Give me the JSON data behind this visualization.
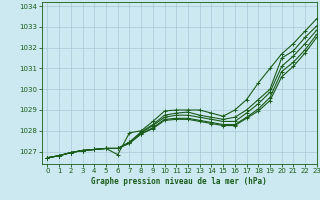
{
  "title": "Graphe pression niveau de la mer (hPa)",
  "bg_color": "#cce8f0",
  "line_color": "#1a5c1a",
  "grid_color": "#aac8d8",
  "xlim": [
    -0.5,
    23
  ],
  "ylim": [
    1026.4,
    1034.2
  ],
  "xticks": [
    0,
    1,
    2,
    3,
    4,
    5,
    6,
    7,
    8,
    9,
    10,
    11,
    12,
    13,
    14,
    15,
    16,
    17,
    18,
    19,
    20,
    21,
    22,
    23
  ],
  "yticks": [
    1027,
    1028,
    1029,
    1030,
    1031,
    1032,
    1033,
    1034
  ],
  "series": [
    [
      1026.7,
      1026.8,
      1026.95,
      1027.05,
      1027.1,
      1027.15,
      1026.85,
      1027.9,
      1028.0,
      1028.45,
      1028.95,
      1029.0,
      1029.0,
      1029.0,
      1028.85,
      1028.7,
      1029.0,
      1029.5,
      1030.3,
      1031.0,
      1031.7,
      1032.2,
      1032.8,
      1033.4
    ],
    [
      1026.7,
      1026.8,
      1026.95,
      1027.05,
      1027.1,
      1027.15,
      1027.15,
      1027.45,
      1027.95,
      1028.3,
      1028.75,
      1028.85,
      1028.9,
      1028.75,
      1028.65,
      1028.55,
      1028.65,
      1029.0,
      1029.5,
      1030.0,
      1031.5,
      1031.85,
      1032.5,
      1033.05
    ],
    [
      1026.7,
      1026.8,
      1026.95,
      1027.05,
      1027.1,
      1027.15,
      1027.15,
      1027.45,
      1027.9,
      1028.25,
      1028.65,
      1028.75,
      1028.75,
      1028.65,
      1028.55,
      1028.45,
      1028.45,
      1028.85,
      1029.3,
      1029.85,
      1031.1,
      1031.6,
      1032.2,
      1032.85
    ],
    [
      1026.7,
      1026.8,
      1026.95,
      1027.05,
      1027.1,
      1027.15,
      1027.15,
      1027.4,
      1027.85,
      1028.15,
      1028.55,
      1028.6,
      1028.6,
      1028.5,
      1028.4,
      1028.3,
      1028.3,
      1028.65,
      1029.05,
      1029.6,
      1030.85,
      1031.3,
      1031.9,
      1032.65
    ],
    [
      1026.7,
      1026.8,
      1026.95,
      1027.05,
      1027.1,
      1027.15,
      1027.15,
      1027.4,
      1027.85,
      1028.1,
      1028.5,
      1028.55,
      1028.55,
      1028.45,
      1028.35,
      1028.25,
      1028.25,
      1028.6,
      1028.95,
      1029.45,
      1030.6,
      1031.1,
      1031.75,
      1032.5
    ]
  ]
}
